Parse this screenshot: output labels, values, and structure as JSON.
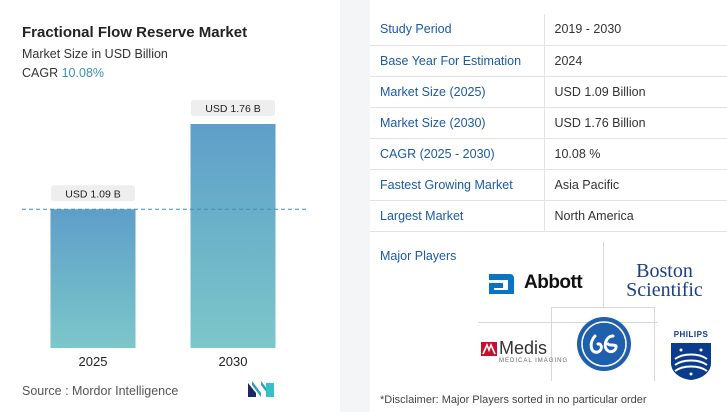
{
  "header": {
    "title": "Fractional Flow Reserve Market",
    "subtitle": "Market Size in USD Billion",
    "cagr_label": "CAGR",
    "cagr_value": "10.08%"
  },
  "chart_data": {
    "type": "bar",
    "title": "Fractional Flow Reserve Market",
    "ylabel": "Market Size in USD Billion",
    "categories": [
      "2025",
      "2030"
    ],
    "values": [
      1.09,
      1.76
    ],
    "data_labels": [
      "USD 1.09 B",
      "USD 1.76 B"
    ],
    "ylim": [
      0,
      1.76
    ],
    "reference_line": 1.09,
    "colors": {
      "bar_top": "#5e9fc9",
      "bar_bottom": "#7cc7c9",
      "label_bg": "#eeeeee",
      "dash": "#3a8fb7"
    }
  },
  "footer": {
    "source": "Source :  Mordor Intelligence"
  },
  "info_table": [
    {
      "key": "Study Period",
      "value": "2019 - 2030"
    },
    {
      "key": "Base Year For Estimation",
      "value": "2024"
    },
    {
      "key": "Market Size (2025)",
      "value": "USD 1.09 Billion"
    },
    {
      "key": "Market Size (2030)",
      "value": "USD 1.76 Billion"
    },
    {
      "key": "CAGR (2025 - 2030)",
      "value": "10.08 %"
    },
    {
      "key": "Fastest Growing Market",
      "value": "Asia Pacific"
    },
    {
      "key": "Largest Market",
      "value": "North America"
    }
  ],
  "players": {
    "label": "Major Players",
    "abbott": "Abbott",
    "boston_line1": "Boston",
    "boston_line2": "Scientific",
    "medis": "Medis",
    "medis_sub": "MEDICAL IMAGING",
    "philips": "PHILIPS"
  },
  "disclaimer": "*Disclaimer: Major Players sorted in no particular order"
}
